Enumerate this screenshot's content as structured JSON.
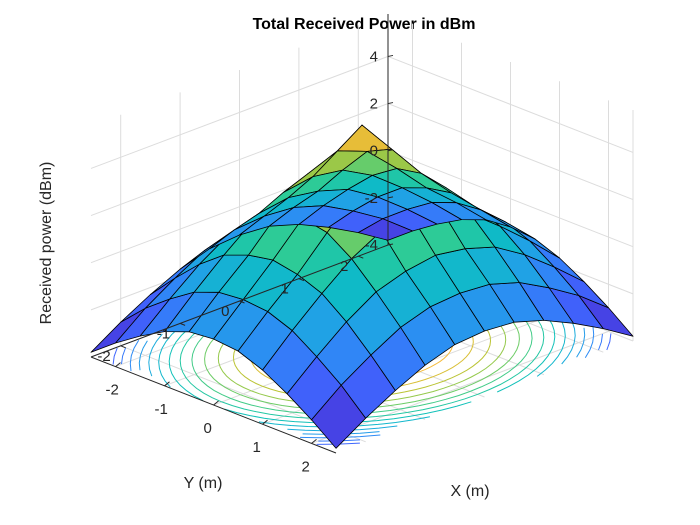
{
  "chart_data": {
    "type": "surface+contour",
    "title": "Total Received Power in dBm",
    "xlabel": "X (m)",
    "ylabel": "Y (m)",
    "zlabel": "Received power (dBm)",
    "xlim": [
      -2.5,
      2.5
    ],
    "ylim": [
      -2.5,
      2.5
    ],
    "zlim": [
      -4,
      5.8
    ],
    "xticks": [
      -2,
      -1,
      0,
      1,
      2
    ],
    "yticks": [
      -2,
      -1,
      0,
      1,
      2
    ],
    "zticks": [
      -4,
      -2,
      0,
      2,
      4
    ],
    "x": [
      -2.5,
      -2.0,
      -1.5,
      -1.0,
      -0.5,
      0.0,
      0.5,
      1.0,
      1.5,
      2.0,
      2.5
    ],
    "y": [
      -2.5,
      -2.0,
      -1.5,
      -1.0,
      -0.5,
      0.0,
      0.5,
      1.0,
      1.5,
      2.0,
      2.5
    ],
    "z": [
      [
        -3.8,
        -3.0,
        -2.3,
        -1.7,
        -1.3,
        -1.2,
        -1.3,
        -1.7,
        -2.3,
        -3.0,
        -3.8
      ],
      [
        -3.0,
        -2.0,
        -1.2,
        -0.5,
        -0.1,
        0.0,
        -0.1,
        -0.5,
        -1.2,
        -2.0,
        -3.0
      ],
      [
        -2.3,
        -1.2,
        -0.2,
        0.6,
        1.0,
        1.2,
        1.0,
        0.6,
        -0.2,
        -1.2,
        -2.3
      ],
      [
        -1.7,
        -0.5,
        0.6,
        1.6,
        2.3,
        2.5,
        2.3,
        1.6,
        0.6,
        -0.5,
        -1.7
      ],
      [
        -1.3,
        -0.1,
        1.0,
        2.3,
        3.5,
        4.0,
        3.5,
        2.3,
        1.0,
        -0.1,
        -1.3
      ],
      [
        -1.2,
        0.0,
        1.2,
        2.5,
        4.0,
        5.5,
        4.0,
        2.5,
        1.2,
        0.0,
        -1.2
      ],
      [
        -1.3,
        -0.1,
        1.0,
        2.3,
        3.5,
        4.0,
        3.5,
        2.3,
        1.0,
        -0.1,
        -1.3
      ],
      [
        -1.7,
        -0.5,
        0.6,
        1.6,
        2.3,
        2.5,
        2.3,
        1.6,
        0.6,
        -0.5,
        -1.7
      ],
      [
        -2.3,
        -1.2,
        -0.2,
        0.6,
        1.0,
        1.2,
        1.0,
        0.6,
        -0.2,
        -1.2,
        -2.3
      ],
      [
        -3.0,
        -2.0,
        -1.2,
        -0.5,
        -0.1,
        0.0,
        -0.1,
        -0.5,
        -1.2,
        -2.0,
        -3.0
      ],
      [
        -3.8,
        -3.0,
        -2.3,
        -1.7,
        -1.3,
        -1.2,
        -1.3,
        -1.7,
        -2.3,
        -3.0,
        -3.8
      ]
    ],
    "contour_levels": [
      -3.5,
      -3,
      -2.5,
      -2,
      -1.5,
      -1,
      -0.5,
      0,
      0.5,
      1,
      1.5,
      2,
      2.5,
      3,
      3.5,
      4,
      4.5,
      5
    ],
    "colormap": [
      "#3e26a8",
      "#4746eb",
      "#3e68fe",
      "#2d8bf5",
      "#1caadf",
      "#0cbfc0",
      "#2ecb96",
      "#7fcc58",
      "#c6c22e",
      "#f8ba3d",
      "#f9e016"
    ],
    "grid": true,
    "view": {
      "azimuth": -37.5,
      "elevation": 30
    }
  }
}
